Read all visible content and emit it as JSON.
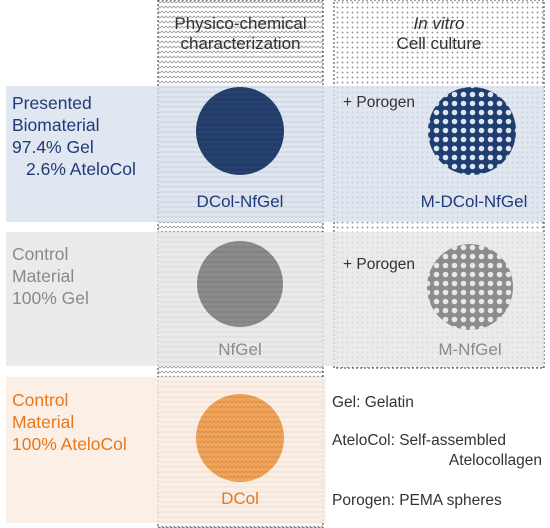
{
  "columns": {
    "physico": {
      "line1": "Physico-chemical",
      "line2": "characterization"
    },
    "invitro": {
      "line1": "In vitro",
      "line2": "Cell culture"
    }
  },
  "rows": {
    "presented": {
      "label": [
        "Presented",
        "Biomaterial",
        "97.4% Gel",
        "2.6% AteloCol"
      ],
      "color": "#1f3a7a",
      "sample_left": "DCol-NfGel",
      "porogen": "+ Porogen",
      "sample_right": "M-DCol-NfGel"
    },
    "control_gel": {
      "label": [
        "Control",
        "Material",
        "100% Gel"
      ],
      "color": "#8a8a8a",
      "sample_left": "NfGel",
      "porogen": "+ Porogen",
      "sample_right": "M-NfGel"
    },
    "control_atelocol": {
      "label": [
        "Control",
        "Material",
        "100% AteloCol"
      ],
      "color": "#e8781e",
      "sample_left": "DCol"
    }
  },
  "legend": {
    "gel": "Gel: Gelatin",
    "atelocol_1": "AteloCol: Self-assembled",
    "atelocol_2": "Atelocollagen",
    "porogen": "Porogen: PEMA spheres"
  },
  "colors": {
    "navy_disc": "#1f3d6e",
    "grey_disc": "#8c8c8c",
    "orange_disc": "#f5a455",
    "band_blue": "#dde3ee",
    "band_grey": "#e8e9ec",
    "band_orange": "#fbeee4"
  }
}
